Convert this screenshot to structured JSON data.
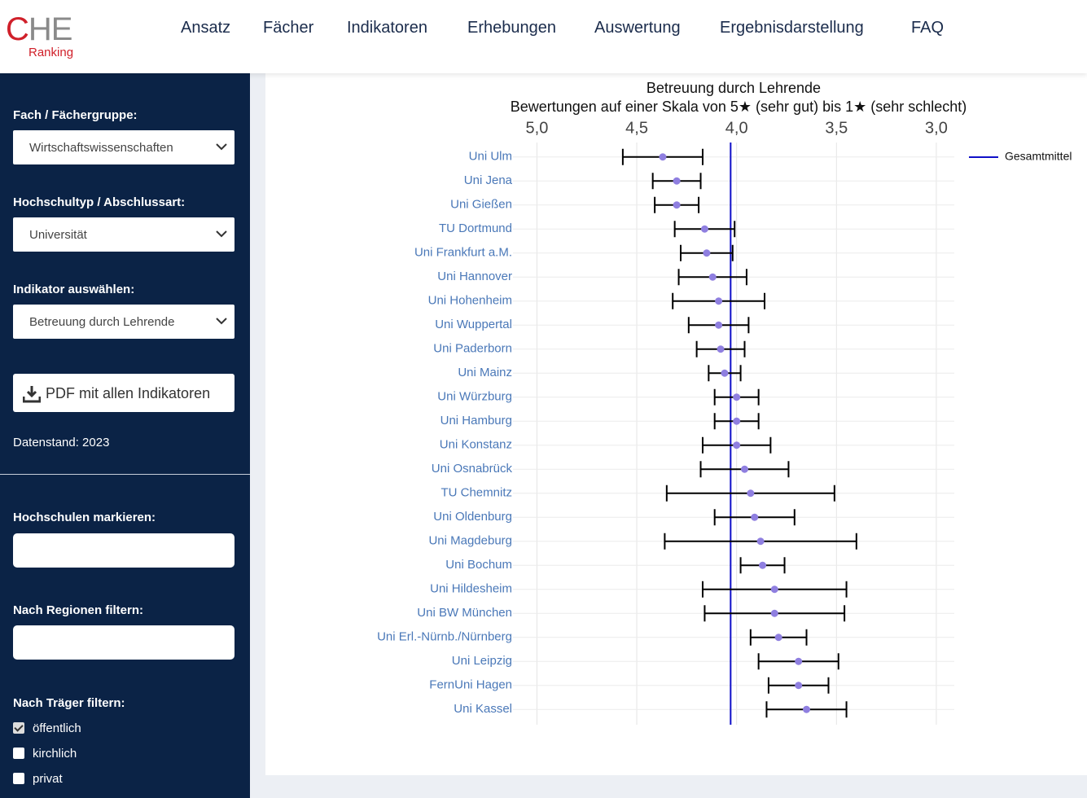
{
  "header": {
    "logo": {
      "initial": "C",
      "rest": "HE",
      "sub": "Ranking"
    },
    "nav": [
      "Ansatz",
      "Fächer",
      "Indikatoren",
      "Erhebungen",
      "Auswertung",
      "Ergebnisdarstellung",
      "FAQ"
    ]
  },
  "sidebar": {
    "fields": [
      {
        "label": "Fach / Fächergruppe:",
        "value": "Wirtschaftswissenschaften"
      },
      {
        "label": "Hochschultyp / Abschlussart:",
        "value": "Universität"
      },
      {
        "label": "Indikator auswählen:",
        "value": "Betreuung durch Lehrende"
      }
    ],
    "button": "PDF mit allen Indikatoren",
    "data_status": "Datenstand: 2023",
    "filters": [
      {
        "label": "Hochschulen markieren:"
      },
      {
        "label": "Nach Regionen filtern:"
      }
    ],
    "carrier": {
      "label": "Nach Träger filtern:",
      "options": [
        {
          "label": "öffentlich",
          "checked": true
        },
        {
          "label": "kirchlich",
          "checked": false
        },
        {
          "label": "privat",
          "checked": false
        }
      ]
    }
  },
  "chart_data": {
    "type": "scatter",
    "title": "Betreuung durch Lehrende",
    "subtitle": "Bewertungen auf einer Skala von 5★ (sehr gut) bis 1★ (sehr schlecht)",
    "categories": [
      "Uni Ulm",
      "Uni Jena",
      "Uni Gießen",
      "TU Dortmund",
      "Uni Frankfurt a.M.",
      "Uni Hannover",
      "Uni Hohenheim",
      "Uni Wuppertal",
      "Uni Paderborn",
      "Uni Mainz",
      "Uni Würzburg",
      "Uni Hamburg",
      "Uni Konstanz",
      "Uni Osnabrück",
      "TU Chemnitz",
      "Uni Oldenburg",
      "Uni Magdeburg",
      "Uni Bochum",
      "Uni Hildesheim",
      "Uni BW München",
      "Uni Erl.-Nürnb./Nürnberg",
      "Uni Leipzig",
      "FernUni Hagen",
      "Uni Kassel"
    ],
    "values": [
      4.37,
      4.3,
      4.3,
      4.16,
      4.15,
      4.12,
      4.09,
      4.09,
      4.08,
      4.06,
      4.0,
      4.0,
      4.0,
      3.96,
      3.93,
      3.91,
      3.88,
      3.87,
      3.81,
      3.81,
      3.79,
      3.69,
      3.69,
      3.65
    ],
    "errors": [
      0.2,
      0.12,
      0.11,
      0.15,
      0.13,
      0.17,
      0.23,
      0.15,
      0.12,
      0.08,
      0.11,
      0.11,
      0.17,
      0.22,
      0.42,
      0.2,
      0.48,
      0.11,
      0.36,
      0.35,
      0.14,
      0.2,
      0.15,
      0.2
    ],
    "color": "#8f7fe0",
    "error_color": "#000000",
    "xlim": [
      5.12,
      2.91
    ],
    "xticks": [
      {
        "value": 5,
        "label": "5,0"
      },
      {
        "value": 4.5,
        "label": "4,5"
      },
      {
        "value": 4,
        "label": "4,0"
      },
      {
        "value": 3.5,
        "label": "3,5"
      },
      {
        "value": 3,
        "label": "3,0"
      }
    ],
    "grid": true,
    "reference_line": {
      "name": "Gesamtmittel",
      "value": 4.03,
      "color": "#1010c8"
    }
  }
}
